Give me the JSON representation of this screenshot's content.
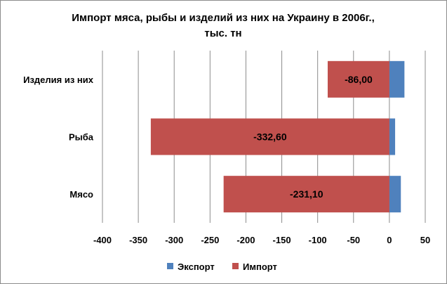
{
  "chart_data": {
    "type": "bar",
    "orientation": "horizontal",
    "title": "Импорт мяса, рыбы и изделий из них на Украину в 2006г.,",
    "subtitle": "тыс. тн",
    "categories": [
      "Изделия из них",
      "Рыба",
      "Мясо"
    ],
    "series": [
      {
        "name": "Экспорт",
        "color": "#4f81bd",
        "values": [
          21,
          8,
          16
        ]
      },
      {
        "name": "Импорт",
        "color": "#c0504d",
        "values": [
          -86.0,
          -332.6,
          -231.1
        ],
        "data_labels": [
          "-86,00",
          "-332,60",
          "-231,10"
        ]
      }
    ],
    "xlim": [
      -400,
      50
    ],
    "x_ticks": [
      "-400",
      "-350",
      "-300",
      "-250",
      "-200",
      "-150",
      "-100",
      "-50",
      "0",
      "50"
    ],
    "grid": "vertical",
    "legend_position": "bottom",
    "stacked": true
  }
}
